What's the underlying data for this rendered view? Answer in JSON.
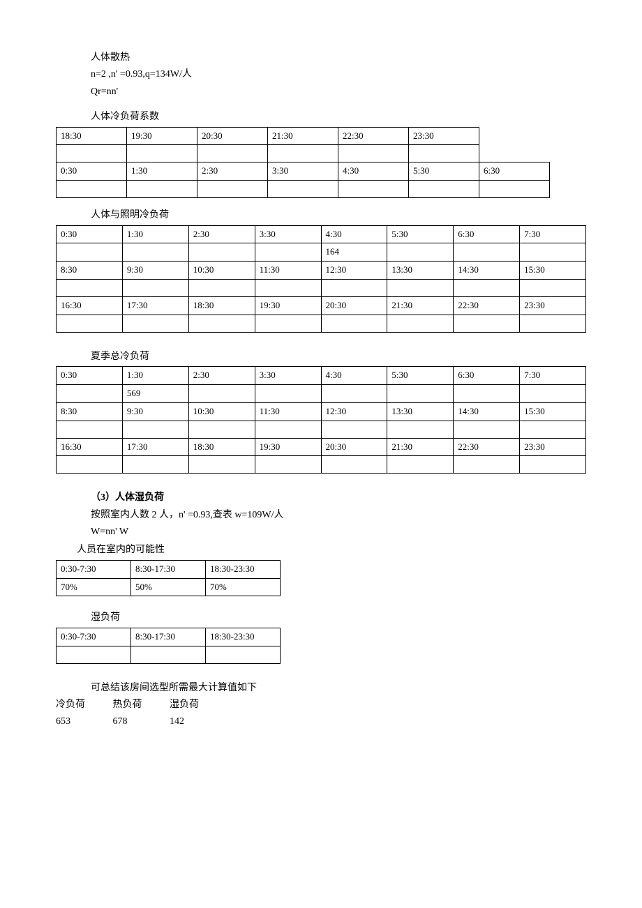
{
  "text": {
    "h1": "人体散热",
    "h1l2": "n=2 ,n' =0.93,q=134W/人",
    "h1l3": "Qr=nn'",
    "t1_title": "人体冷负荷系数",
    "t2_title": "人体与照明冷负荷",
    "t3_title": "夏季总冷负荷",
    "h2": "（3）人体湿负荷",
    "h2l2": "按照室内人数 2 人，n' =0.93,查表 w=109W/人",
    "h2l3": "W=nn' W",
    "t4_title": "人员在室内的可能性",
    "t5_title": "湿负荷",
    "summary_line": "可总结该房间选型所需最大计算值如下",
    "sum_cold": "冷负荷",
    "sum_hot": "热负荷",
    "sum_wet": "湿负荷",
    "sum_v1": "653",
    "sum_v2": "678",
    "sum_v3": "142"
  },
  "tables": {
    "t1": {
      "cols": 7,
      "rows": [
        [
          "18:30",
          "19:30",
          "20:30",
          "21:30",
          "22:30",
          "23:30",
          null
        ],
        [
          "",
          "",
          "",
          "",
          "",
          "",
          null
        ],
        [
          "0:30",
          "1:30",
          "2:30",
          "3:30",
          "4:30",
          "5:30",
          "6:30"
        ],
        [
          "",
          "",
          "",
          "",
          "",
          "",
          ""
        ]
      ]
    },
    "t2": {
      "cols": 8,
      "rows": [
        [
          "0:30",
          "1:30",
          "2:30",
          "3:30",
          "4:30",
          "5:30",
          "6:30",
          "7:30"
        ],
        [
          "",
          "",
          "",
          "",
          "164",
          "",
          "",
          ""
        ],
        [
          "8:30",
          "9:30",
          "10:30",
          "11:30",
          "12:30",
          "13:30",
          "14:30",
          "15:30"
        ],
        [
          "",
          "",
          "",
          "",
          "",
          "",
          "",
          ""
        ],
        [
          "16:30",
          "17:30",
          "18:30",
          "19:30",
          "20:30",
          "21:30",
          "22:30",
          "23:30"
        ],
        [
          "",
          "",
          "",
          "",
          "",
          "",
          "",
          ""
        ]
      ]
    },
    "t3": {
      "cols": 8,
      "rows": [
        [
          "0:30",
          "1:30",
          "2:30",
          "3:30",
          "4:30",
          "5:30",
          "6:30",
          "7:30"
        ],
        [
          "",
          "569",
          "",
          "",
          "",
          "",
          "",
          ""
        ],
        [
          "8:30",
          "9:30",
          "10:30",
          "11:30",
          "12:30",
          "13:30",
          "14:30",
          "15:30"
        ],
        [
          "",
          "",
          "",
          "",
          "",
          "",
          "",
          ""
        ],
        [
          "16:30",
          "17:30",
          "18:30",
          "19:30",
          "20:30",
          "21:30",
          "22:30",
          "23:30"
        ],
        [
          "",
          "",
          "",
          "",
          "",
          "",
          "",
          ""
        ]
      ]
    },
    "t4": {
      "cols": 3,
      "rows": [
        [
          "0:30-7:30",
          "8:30-17:30",
          "18:30-23:30"
        ],
        [
          "70%",
          "50%",
          "70%"
        ]
      ]
    },
    "t5": {
      "cols": 3,
      "rows": [
        [
          "0:30-7:30",
          "8:30-17:30",
          "18:30-23:30"
        ],
        [
          "",
          "",
          ""
        ]
      ]
    }
  }
}
